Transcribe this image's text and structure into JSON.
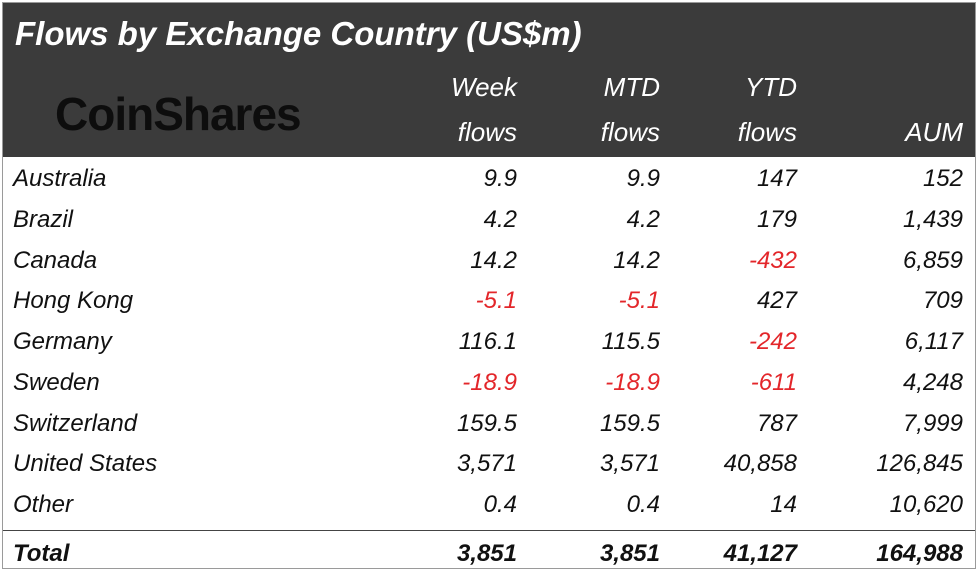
{
  "header": {
    "title": "Flows by Exchange Country (US$m)",
    "logo": "CoinShares",
    "columns": [
      [
        "Week",
        "flows"
      ],
      [
        "MTD",
        "flows"
      ],
      [
        "YTD",
        "flows"
      ],
      [
        "AUM"
      ]
    ]
  },
  "table": {
    "rows": [
      [
        "Australia",
        "9.9",
        "9.9",
        "147",
        "152"
      ],
      [
        "Brazil",
        "4.2",
        "4.2",
        "179",
        "1,439"
      ],
      [
        "Canada",
        "14.2",
        "14.2",
        "-432",
        "6,859"
      ],
      [
        "Hong Kong",
        "-5.1",
        "-5.1",
        "427",
        "709"
      ],
      [
        "Germany",
        "116.1",
        "115.5",
        "-242",
        "6,117"
      ],
      [
        "Sweden",
        "-18.9",
        "-18.9",
        "-611",
        "4,248"
      ],
      [
        "Switzerland",
        "159.5",
        "159.5",
        "787",
        "7,999"
      ],
      [
        "United States",
        "3,571",
        "3,571",
        "40,858",
        "126,845"
      ],
      [
        "Other",
        "0.4",
        "0.4",
        "14",
        "10,620"
      ]
    ],
    "total": [
      "Total",
      "3,851",
      "3,851",
      "41,127",
      "164,988"
    ]
  }
}
